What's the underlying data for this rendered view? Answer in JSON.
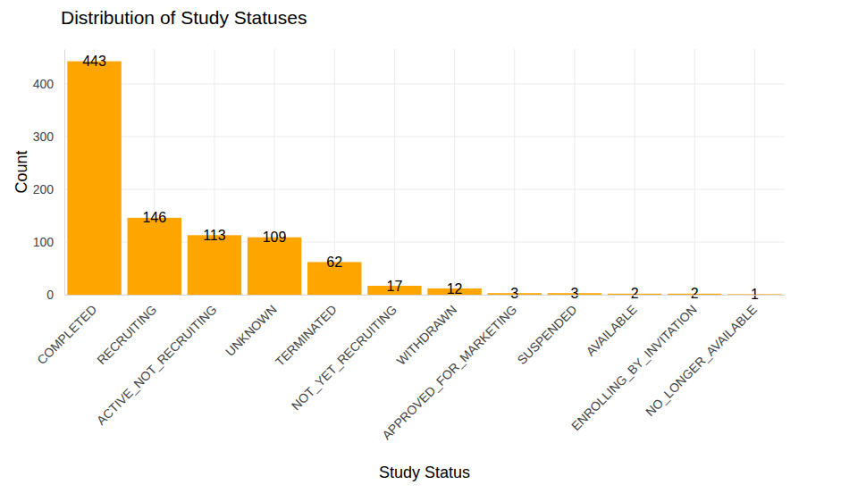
{
  "chart_data": {
    "type": "bar",
    "title": "Distribution of Study Statuses",
    "x_label": "Study Status",
    "y_label": "Count",
    "categories": [
      "COMPLETED",
      "RECRUITING",
      "ACTIVE_NOT_RECRUITING",
      "UNKNOWN",
      "TERMINATED",
      "NOT_YET_RECRUITING",
      "WITHDRAWN",
      "APPROVED_FOR_MARKETING",
      "SUSPENDED",
      "AVAILABLE",
      "ENROLLING_BY_INVITATION",
      "NO_LONGER_AVAILABLE"
    ],
    "values": [
      443,
      146,
      113,
      109,
      62,
      17,
      12,
      3,
      3,
      2,
      2,
      1
    ],
    "color": "#FFA500",
    "ylim": [
      0,
      466
    ],
    "yticks": [
      0,
      100,
      200,
      300,
      400
    ],
    "grid": true,
    "data_labels": true
  }
}
